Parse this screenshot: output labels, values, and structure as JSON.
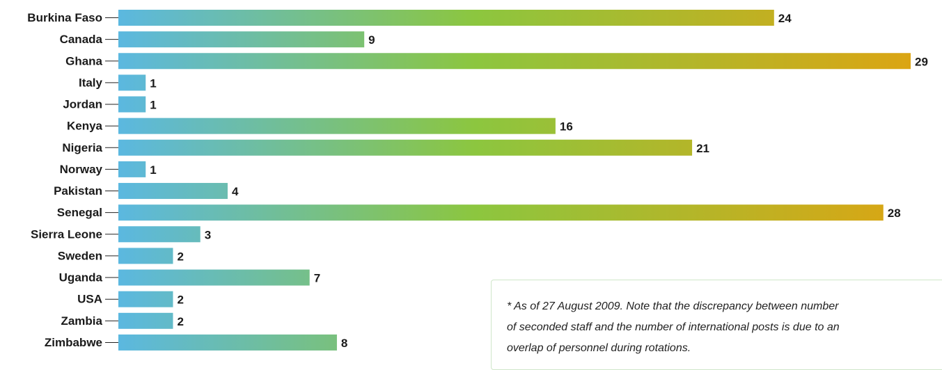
{
  "chart_data": {
    "type": "bar",
    "orientation": "horizontal",
    "categories": [
      "Burkina Faso",
      "Canada",
      "Ghana",
      "Italy",
      "Jordan",
      "Kenya",
      "Nigeria",
      "Norway",
      "Pakistan",
      "Senegal",
      "Sierra Leone",
      "Sweden",
      "Uganda",
      "USA",
      "Zambia",
      "Zimbabwe"
    ],
    "values": [
      24,
      9,
      29,
      1,
      1,
      16,
      21,
      1,
      4,
      28,
      3,
      2,
      7,
      2,
      2,
      8
    ],
    "xlim": [
      0,
      29
    ],
    "grid": false,
    "legend": "none",
    "colors": {
      "start": "#5bb8e0",
      "mid": "#8cc63f",
      "end": "#dba513"
    }
  },
  "footnote": "* As of 27 August 2009. Note that the discrepancy between number\nof seconded staff and the number of international posts is due to an\noverlap of personnel during rotations."
}
